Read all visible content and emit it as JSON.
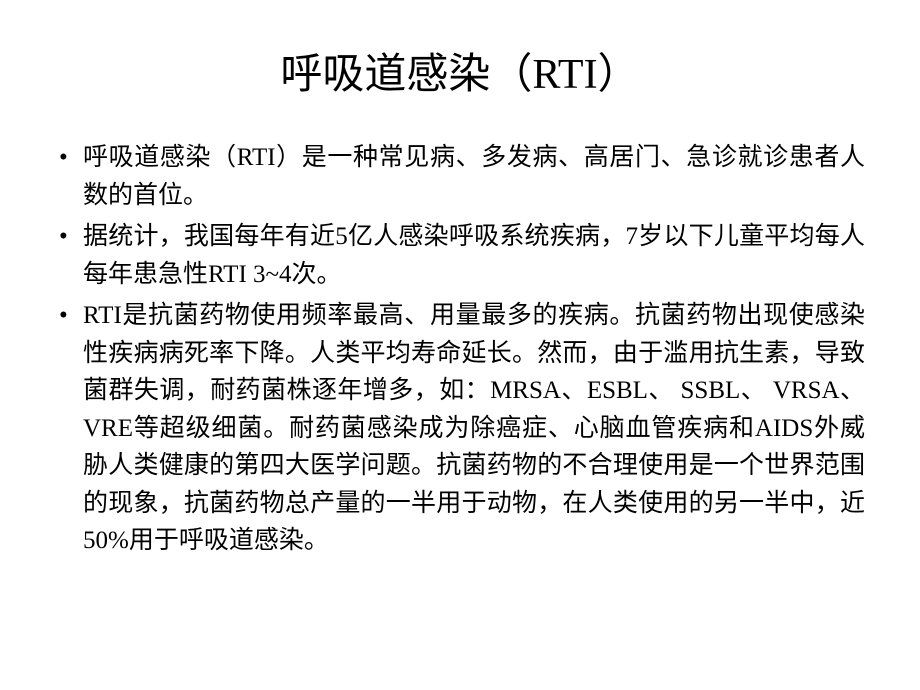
{
  "slide": {
    "title": "呼吸道感染（RTI）",
    "bullets": [
      "呼吸道感染（RTI）是一种常见病、多发病、高居门、急诊就诊患者人数的首位。",
      "据统计，我国每年有近5亿人感染呼吸系统疾病，7岁以下儿童平均每人每年患急性RTI 3~4次。",
      "RTI是抗菌药物使用频率最高、用量最多的疾病。抗菌药物出现使感染性疾病病死率下降。人类平均寿命延长。然而，由于滥用抗生素，导致菌群失调，耐药菌株逐年增多，如：MRSA、ESBL、 SSBL、 VRSA、VRE等超级细菌。耐药菌感染成为除癌症、心脑血管疾病和AIDS外威胁人类健康的第四大医学问题。抗菌药物的不合理使用是一个世界范围的现象，抗菌药物总产量的一半用于动物，在人类使用的另一半中，近50%用于呼吸道感染。"
    ],
    "styles": {
      "title_fontsize": 42,
      "body_fontsize": 25,
      "line_height": 1.5,
      "background_color": "#ffffff",
      "text_color": "#000000",
      "bullet_marker": "•",
      "font_family": "SimSun"
    }
  }
}
